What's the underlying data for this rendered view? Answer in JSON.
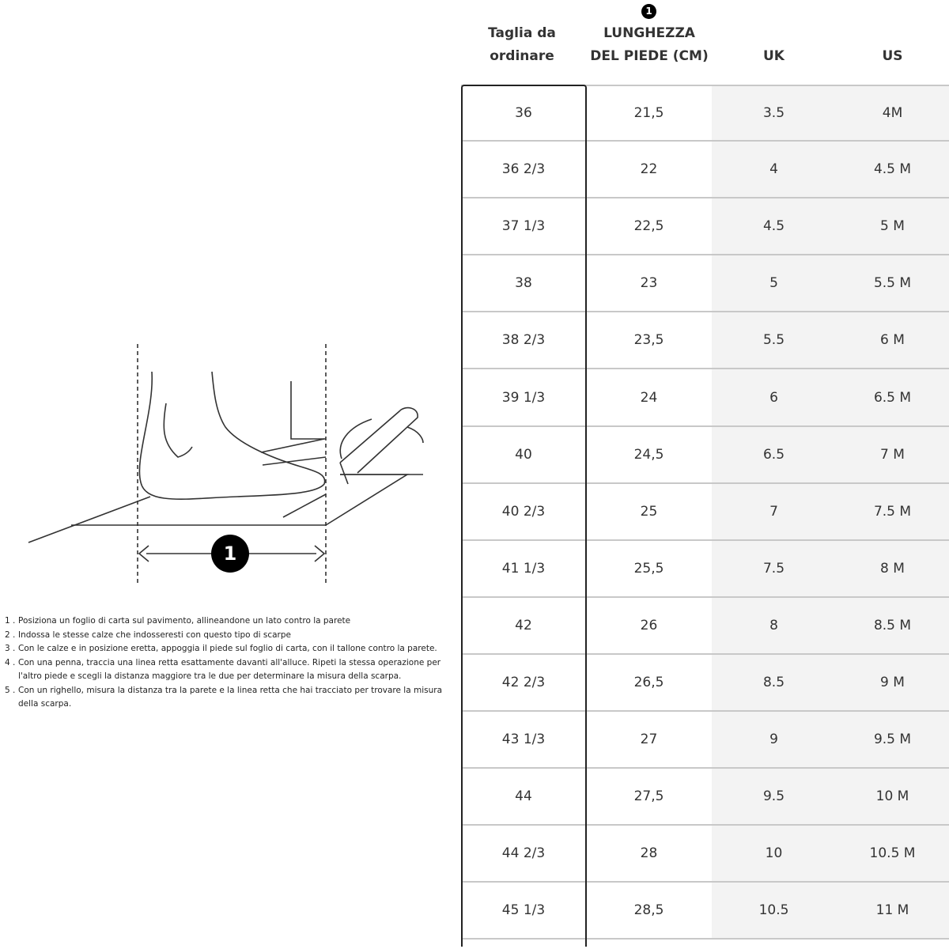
{
  "illustration": {
    "marker_label": "1"
  },
  "header": {
    "marker_label": "1",
    "columns": [
      "Taglia da ordinare",
      "LUNGHEZZA DEL PIEDE (CM)",
      "UK",
      "US"
    ]
  },
  "rows": [
    [
      "36",
      "21,5",
      "3.5",
      "4M"
    ],
    [
      "36 2/3",
      "22",
      "4",
      "4.5 M"
    ],
    [
      "37 1/3",
      "22,5",
      "4.5",
      "5 M"
    ],
    [
      "38",
      "23",
      "5",
      "5.5 M"
    ],
    [
      "38 2/3",
      "23,5",
      "5.5",
      "6 M"
    ],
    [
      "39 1/3",
      "24",
      "6",
      "6.5 M"
    ],
    [
      "40",
      "24,5",
      "6.5",
      "7 M"
    ],
    [
      "40 2/3",
      "25",
      "7",
      "7.5 M"
    ],
    [
      "41 1/3",
      "25,5",
      "7.5",
      "8 M"
    ],
    [
      "42",
      "26",
      "8",
      "8.5 M"
    ],
    [
      "42 2/3",
      "26,5",
      "8.5",
      "9 M"
    ],
    [
      "43 1/3",
      "27",
      "9",
      "9.5 M"
    ],
    [
      "44",
      "27,5",
      "9.5",
      "10 M"
    ],
    [
      "44 2/3",
      "28",
      "10",
      "10.5 M"
    ],
    [
      "45 1/3",
      "28,5",
      "10.5",
      "11 M"
    ]
  ],
  "instructions": [
    {
      "n": "1 .",
      "text": "Posiziona un foglio di carta sul pavimento, allineandone un lato contro la parete"
    },
    {
      "n": "2 .",
      "text": "Indossa le stesse calze che indosseresti con questo tipo di scarpe"
    },
    {
      "n": "3 .",
      "text": "Con le calze e in posizione eretta, appoggia il piede sul foglio di carta, con il tallone contro la parete."
    },
    {
      "n": "4 .",
      "text": "Con una penna, traccia una linea retta esattamente davanti all'alluce. Ripeti la stessa operazione per l'altro piede e scegli la distanza maggiore tra le due per determinare la misura della scarpa."
    },
    {
      "n": "5 .",
      "text": "Con un righello, misura la distanza tra la parete e la linea retta che hai tracciato per trovare la misura della scarpa."
    }
  ],
  "colors": {
    "alt_column_bg": "#f3f3f3",
    "border": "#222222",
    "row_divider": "#c8c8c8"
  }
}
